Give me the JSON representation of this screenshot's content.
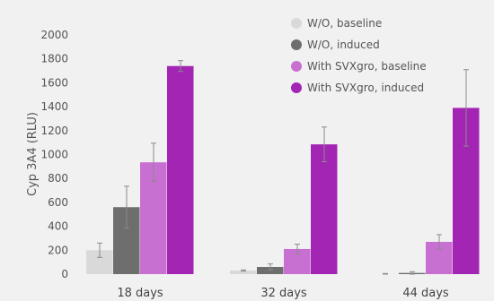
{
  "chart_data": {
    "type": "bar",
    "ylabel": "Cyp 3A4 (RLU)",
    "xlabel": "",
    "ylim": [
      0,
      2000
    ],
    "yticks": [
      0,
      200,
      400,
      600,
      800,
      1000,
      1200,
      1400,
      1600,
      1800,
      2000
    ],
    "grid": false,
    "legend_position": "top-right",
    "categories": [
      "18 days",
      "32 days",
      "44 days"
    ],
    "series": [
      {
        "name": "W/O, baseline",
        "color": "#d9d9d9",
        "values": [
          200,
          30,
          0
        ],
        "errors": [
          60,
          5,
          5
        ]
      },
      {
        "name": "W/O, induced",
        "color": "#6e6e6e",
        "values": [
          560,
          60,
          10
        ],
        "errors": [
          175,
          25,
          10
        ]
      },
      {
        "name": "With SVXgro, baseline",
        "color": "#c86fd2",
        "values": [
          935,
          210,
          270
        ],
        "errors": [
          160,
          40,
          60
        ]
      },
      {
        "name": "With SVXgro, induced",
        "color": "#a325b4",
        "values": [
          1740,
          1085,
          1390
        ],
        "errors": [
          45,
          145,
          320
        ]
      }
    ]
  }
}
